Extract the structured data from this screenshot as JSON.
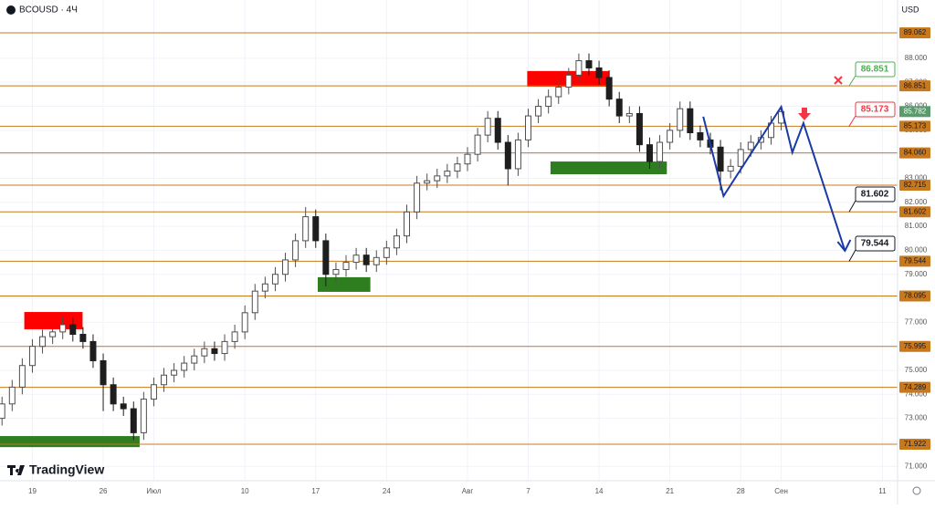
{
  "chart_data": {
    "type": "candlestick",
    "title": "BCOUSD · 4Ч",
    "currency": "USD",
    "brand": "TradingView",
    "x": [
      -3,
      -2,
      -1,
      0,
      1,
      2,
      3,
      4,
      5,
      6,
      7,
      8,
      9,
      10,
      11,
      12,
      13,
      14,
      15,
      16,
      17,
      18,
      19,
      20,
      21,
      22,
      23,
      24,
      25,
      26,
      27,
      28,
      29,
      30,
      31,
      32,
      33,
      34,
      35,
      36,
      37,
      38,
      39,
      40,
      41,
      42,
      43,
      44,
      45,
      46,
      47,
      48,
      49,
      50,
      51,
      52,
      53,
      54,
      55,
      56,
      57,
      58,
      59,
      60,
      61,
      62,
      63,
      64,
      65,
      66,
      67,
      68,
      69,
      70,
      71,
      72,
      73,
      74
    ],
    "open": [
      73.0,
      73.6,
      74.3,
      75.2,
      76.0,
      76.4,
      76.6,
      76.9,
      76.5,
      76.2,
      75.4,
      74.4,
      73.6,
      73.4,
      72.4,
      73.8,
      74.4,
      74.8,
      75.0,
      75.3,
      75.6,
      75.9,
      75.7,
      76.2,
      76.6,
      77.4,
      78.3,
      78.6,
      79.0,
      79.6,
      80.4,
      81.4,
      80.4,
      79.0,
      79.2,
      79.5,
      79.8,
      79.4,
      79.7,
      80.1,
      80.6,
      81.6,
      82.8,
      82.9,
      83.1,
      83.3,
      83.6,
      84.0,
      84.8,
      85.5,
      84.5,
      83.4,
      84.6,
      85.6,
      86.0,
      86.4,
      86.8,
      87.3,
      87.9,
      87.6,
      87.2,
      86.3,
      85.6,
      85.7,
      84.4,
      83.7,
      84.5,
      85.0,
      85.9,
      84.9,
      84.6,
      84.3,
      83.3,
      83.5,
      84.2,
      84.5,
      84.7,
      85.3
    ],
    "high": [
      73.9,
      74.6,
      75.5,
      76.3,
      76.7,
      76.9,
      77.2,
      77.2,
      76.8,
      76.5,
      75.7,
      74.7,
      73.9,
      73.7,
      74.1,
      74.7,
      75.1,
      75.3,
      75.6,
      75.9,
      76.2,
      76.2,
      76.5,
      76.9,
      77.7,
      78.6,
      78.9,
      79.3,
      79.9,
      80.7,
      81.8,
      81.7,
      80.7,
      79.5,
      79.8,
      80.1,
      80.1,
      80.0,
      80.4,
      80.9,
      81.9,
      83.1,
      83.2,
      83.4,
      83.6,
      83.9,
      84.3,
      85.1,
      85.8,
      85.8,
      84.8,
      84.9,
      85.9,
      86.3,
      86.7,
      87.1,
      87.6,
      88.2,
      88.2,
      87.9,
      87.5,
      86.6,
      86.0,
      86.0,
      84.7,
      84.8,
      85.3,
      86.2,
      86.2,
      85.2,
      84.9,
      84.6,
      83.8,
      84.5,
      84.8,
      85.0,
      85.6,
      86.0
    ],
    "low": [
      72.7,
      73.3,
      74.0,
      74.9,
      75.7,
      76.1,
      76.3,
      76.2,
      75.9,
      75.1,
      73.3,
      73.3,
      73.1,
      72.1,
      72.1,
      73.5,
      74.1,
      74.5,
      74.7,
      75.0,
      75.3,
      75.4,
      75.4,
      75.9,
      76.3,
      77.1,
      78.0,
      78.3,
      78.7,
      79.3,
      80.1,
      80.1,
      78.5,
      78.7,
      78.9,
      79.2,
      79.1,
      79.1,
      79.4,
      79.8,
      80.3,
      81.3,
      82.5,
      82.6,
      82.8,
      83.0,
      83.3,
      83.7,
      84.5,
      84.2,
      82.7,
      83.1,
      84.3,
      85.3,
      85.7,
      86.1,
      86.5,
      87.0,
      87.3,
      86.9,
      86.0,
      85.3,
      85.3,
      84.1,
      83.4,
      83.4,
      84.2,
      84.7,
      84.6,
      84.3,
      84.0,
      82.5,
      83.0,
      83.2,
      83.9,
      84.2,
      84.4,
      85.0
    ],
    "close": [
      73.6,
      74.3,
      75.2,
      76.0,
      76.4,
      76.6,
      76.9,
      76.5,
      76.2,
      75.4,
      74.4,
      73.6,
      73.4,
      72.4,
      73.8,
      74.4,
      74.8,
      75.0,
      75.3,
      75.6,
      75.9,
      75.7,
      76.2,
      76.6,
      77.4,
      78.3,
      78.6,
      79.0,
      79.6,
      80.4,
      81.4,
      80.4,
      79.0,
      79.2,
      79.5,
      79.8,
      79.4,
      79.7,
      80.1,
      80.6,
      81.6,
      82.8,
      82.9,
      83.1,
      83.3,
      83.6,
      84.0,
      84.8,
      85.5,
      84.5,
      83.4,
      84.6,
      85.6,
      86.0,
      86.4,
      86.8,
      87.3,
      87.9,
      87.6,
      87.2,
      86.3,
      85.6,
      85.7,
      84.4,
      83.7,
      84.5,
      85.0,
      85.9,
      84.9,
      84.6,
      84.3,
      83.3,
      83.5,
      84.2,
      84.5,
      84.7,
      85.3,
      85.78
    ],
    "up_color": "#4f4f4f",
    "down_color": "#1e1e1e",
    "xlim": [
      -3.2,
      85.5
    ],
    "xticks": [
      {
        "value": 0,
        "label": "19"
      },
      {
        "value": 7,
        "label": "26"
      },
      {
        "value": 12,
        "label": "Июл"
      },
      {
        "value": 21,
        "label": "10"
      },
      {
        "value": 28,
        "label": "17"
      },
      {
        "value": 35,
        "label": "24"
      },
      {
        "value": 43,
        "label": "Авг"
      },
      {
        "value": 49,
        "label": "7"
      },
      {
        "value": 56,
        "label": "14"
      },
      {
        "value": 63,
        "label": "21"
      },
      {
        "value": 70,
        "label": "28"
      },
      {
        "value": 74,
        "label": "Сен"
      },
      {
        "value": 84,
        "label": "11"
      }
    ],
    "ylim": [
      70.4,
      90.43
    ],
    "yticks": [
      {
        "value": 71,
        "label": "71.000"
      },
      {
        "value": 72,
        "label": "72.000"
      },
      {
        "value": 73,
        "label": "73.000"
      },
      {
        "value": 74,
        "label": "74.000"
      },
      {
        "value": 75,
        "label": "75.000"
      },
      {
        "value": 76,
        "label": "76.000"
      },
      {
        "value": 77,
        "label": "77.000"
      },
      {
        "value": 78,
        "label": "78.000"
      },
      {
        "value": 79,
        "label": "79.000"
      },
      {
        "value": 80,
        "label": "80.000"
      },
      {
        "value": 81,
        "label": "81.000"
      },
      {
        "value": 82,
        "label": "82.000"
      },
      {
        "value": 83,
        "label": "83.000"
      },
      {
        "value": 84,
        "label": "84.000"
      },
      {
        "value": 85,
        "label": "85.000"
      },
      {
        "value": 86,
        "label": "86.000"
      },
      {
        "value": 87,
        "label": "87.000"
      },
      {
        "value": 88,
        "label": "88.000"
      }
    ],
    "grid": true,
    "levels": [
      89.062,
      86.851,
      85.173,
      {
        "value": 84.06,
        "label": "84.060"
      },
      82.715,
      81.602,
      79.544,
      78.095,
      75.995,
      74.289,
      71.922
    ],
    "level_color": "#c8791e",
    "last_price": 85.782,
    "last_price_color": "#5a9a6b",
    "zones": [
      {
        "x": [
          -0.8,
          4.96
        ],
        "y": [
          76.71,
          77.43
        ],
        "color": "#ff0000"
      },
      {
        "x": [
          -3.2,
          10.6
        ],
        "y": [
          71.8,
          72.26
        ],
        "color": "#2e7d1f"
      },
      {
        "x": [
          28.2,
          33.4
        ],
        "y": [
          78.27,
          78.88
        ],
        "color": "#2e7d1f"
      },
      {
        "x": [
          48.9,
          57.0
        ],
        "y": [
          86.82,
          87.47
        ],
        "color": "#ff0000"
      },
      {
        "x": [
          51.2,
          62.7
        ],
        "y": [
          83.17,
          83.7
        ],
        "color": "#2e7d1f"
      }
    ],
    "projection": {
      "x": [
        66.3,
        68.3,
        74.0,
        75.1,
        76.2,
        80.3
      ],
      "values": [
        85.57,
        82.26,
        85.98,
        84.08,
        85.3,
        79.98
      ],
      "color": "#1b3aa6"
    },
    "callouts": [
      {
        "value": 86.851,
        "color": "#4caf50"
      },
      {
        "value": 85.173,
        "color": "#f23645"
      },
      {
        "value": 81.602,
        "color": "#131722"
      },
      {
        "value": 79.544,
        "color": "#131722"
      }
    ]
  }
}
